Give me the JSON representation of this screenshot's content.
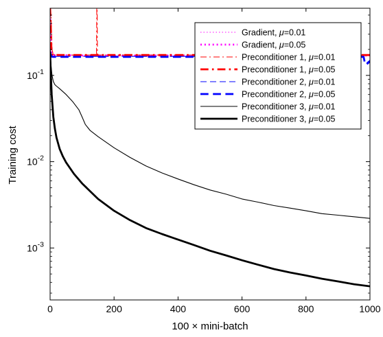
{
  "chart_data": {
    "type": "line",
    "title": "",
    "xlabel": "100 × mini-batch",
    "ylabel": "Training cost",
    "xlim": [
      0,
      1000
    ],
    "ylim": [
      0.00025,
      0.6
    ],
    "yscale": "log",
    "grid": false,
    "legend_position": "top-right",
    "x_ticks": [
      {
        "value": 0,
        "label": "0"
      },
      {
        "value": 200,
        "label": "200"
      },
      {
        "value": 400,
        "label": "400"
      },
      {
        "value": 600,
        "label": "600"
      },
      {
        "value": 800,
        "label": "800"
      },
      {
        "value": 1000,
        "label": "1000"
      }
    ],
    "y_ticks": [
      {
        "value": 0.001,
        "base": "10",
        "exp": "-3"
      },
      {
        "value": 0.01,
        "base": "10",
        "exp": "-2"
      },
      {
        "value": 0.1,
        "base": "10",
        "exp": "-1"
      }
    ],
    "series": [
      {
        "name": "Gradient, μ=0.01",
        "legend_main": "Gradient, ",
        "legend_mu": "μ",
        "legend_val": "=0.01",
        "color": "#ff00ff",
        "dash": "dotted",
        "weight": "thin",
        "x": [
          0,
          2,
          5,
          10,
          100,
          200,
          300,
          400,
          500,
          600,
          700,
          800,
          900,
          1000
        ],
        "y": [
          0.55,
          0.3,
          0.2,
          0.175,
          0.17,
          0.17,
          0.17,
          0.17,
          0.17,
          0.17,
          0.17,
          0.17,
          0.17,
          0.17
        ]
      },
      {
        "name": "Gradient, μ=0.05",
        "legend_main": "Gradient, ",
        "legend_mu": "μ",
        "legend_val": "=0.05",
        "color": "#ff00ff",
        "dash": "dotted",
        "weight": "thick",
        "x": [
          0,
          2,
          5,
          10,
          100,
          200,
          300,
          400,
          500,
          600,
          700,
          800,
          900,
          1000
        ],
        "y": [
          0.5,
          0.28,
          0.19,
          0.172,
          0.17,
          0.17,
          0.17,
          0.17,
          0.17,
          0.17,
          0.17,
          0.17,
          0.17,
          0.17
        ]
      },
      {
        "name": "Preconditioner 1, μ=0.01",
        "legend_main": "Preconditioner 1, ",
        "legend_mu": "μ",
        "legend_val": "=0.01",
        "color": "#ff0000",
        "dash": "dashdot",
        "weight": "thin",
        "x": [
          0,
          3,
          6,
          10,
          50,
          100,
          145,
          146,
          147,
          148,
          150,
          200,
          300,
          400,
          500,
          600,
          700,
          800,
          900,
          1000
        ],
        "y": [
          0.6,
          0.5,
          0.2,
          0.172,
          0.172,
          0.172,
          0.172,
          0.6,
          0.6,
          0.172,
          0.172,
          0.172,
          0.172,
          0.172,
          0.172,
          0.172,
          0.172,
          0.172,
          0.172,
          0.172
        ]
      },
      {
        "name": "Preconditioner 1, μ=0.05",
        "legend_main": "Preconditioner 1, ",
        "legend_mu": "μ",
        "legend_val": "=0.05",
        "color": "#ff0000",
        "dash": "dashdot",
        "weight": "thick",
        "x": [
          0,
          2,
          4,
          8,
          100,
          200,
          300,
          400,
          500,
          600,
          700,
          800,
          900,
          1000
        ],
        "y": [
          0.6,
          0.4,
          0.2,
          0.172,
          0.172,
          0.172,
          0.172,
          0.172,
          0.172,
          0.172,
          0.172,
          0.172,
          0.172,
          0.172
        ]
      },
      {
        "name": "Preconditioner 2, μ=0.01",
        "legend_main": "Preconditioner 2, ",
        "legend_mu": "μ",
        "legend_val": "=0.01",
        "color": "#0000ff",
        "dash": "dashed",
        "weight": "thin",
        "x": [
          0,
          5,
          10,
          100,
          200,
          300,
          400,
          500,
          600,
          700,
          800,
          900,
          950,
          980,
          985,
          990,
          1000
        ],
        "y": [
          0.2,
          0.168,
          0.166,
          0.166,
          0.166,
          0.166,
          0.166,
          0.166,
          0.166,
          0.166,
          0.166,
          0.166,
          0.166,
          0.166,
          0.14,
          0.14,
          0.15
        ]
      },
      {
        "name": "Preconditioner 2, μ=0.05",
        "legend_main": "Preconditioner 2, ",
        "legend_mu": "μ",
        "legend_val": "=0.05",
        "color": "#0000ff",
        "dash": "dashed",
        "weight": "thick",
        "x": [
          0,
          5,
          10,
          100,
          200,
          300,
          400,
          500,
          600,
          700,
          800,
          900,
          950,
          980,
          985,
          990,
          1000
        ],
        "y": [
          0.18,
          0.165,
          0.164,
          0.164,
          0.164,
          0.164,
          0.164,
          0.164,
          0.164,
          0.164,
          0.164,
          0.164,
          0.164,
          0.164,
          0.135,
          0.135,
          0.145
        ]
      },
      {
        "name": "Preconditioner 3, μ=0.01",
        "legend_main": "Preconditioner 3, ",
        "legend_mu": "μ",
        "legend_val": "=0.01",
        "color": "#000000",
        "dash": "solid",
        "weight": "thin",
        "x": [
          0,
          3,
          6,
          10,
          15,
          20,
          30,
          50,
          70,
          90,
          100,
          110,
          125,
          150,
          200,
          250,
          300,
          350,
          400,
          450,
          500,
          550,
          600,
          650,
          700,
          750,
          800,
          850,
          900,
          950,
          1000
        ],
        "y": [
          0.2,
          0.13,
          0.1,
          0.085,
          0.078,
          0.075,
          0.07,
          0.06,
          0.05,
          0.04,
          0.033,
          0.027,
          0.023,
          0.0195,
          0.0145,
          0.0112,
          0.0089,
          0.0074,
          0.0063,
          0.0054,
          0.0047,
          0.0042,
          0.0037,
          0.0034,
          0.0031,
          0.0029,
          0.0027,
          0.0025,
          0.0024,
          0.0023,
          0.0022
        ]
      },
      {
        "name": "Preconditioner 3, μ=0.05",
        "legend_main": "Preconditioner 3, ",
        "legend_mu": "μ",
        "legend_val": "=0.05",
        "color": "#000000",
        "dash": "solid",
        "weight": "thick",
        "x": [
          0,
          2,
          5,
          10,
          15,
          20,
          30,
          40,
          50,
          75,
          100,
          150,
          200,
          250,
          300,
          350,
          400,
          450,
          500,
          550,
          600,
          650,
          700,
          750,
          800,
          850,
          900,
          950,
          1000
        ],
        "y": [
          0.19,
          0.11,
          0.06,
          0.033,
          0.024,
          0.019,
          0.014,
          0.0115,
          0.0098,
          0.0072,
          0.0056,
          0.0037,
          0.0027,
          0.0021,
          0.0017,
          0.00145,
          0.00125,
          0.00108,
          0.00093,
          0.00082,
          0.00072,
          0.00064,
          0.00057,
          0.00052,
          0.00048,
          0.00044,
          0.00041,
          0.00038,
          0.00036
        ]
      }
    ]
  }
}
